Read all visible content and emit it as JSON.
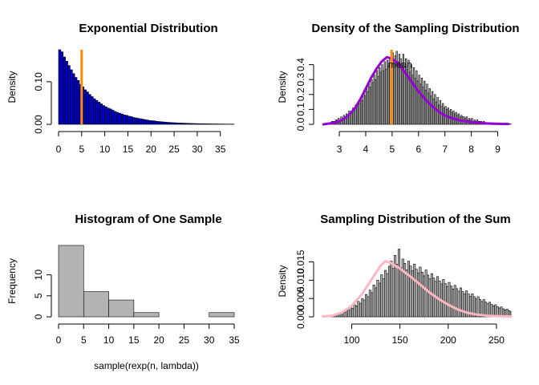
{
  "chart_data": [
    {
      "type": "bar",
      "panel": "top-left",
      "title": "Exponential Distribution",
      "xlabel": "",
      "ylabel": "Density",
      "xlim": [
        0,
        38
      ],
      "ylim": [
        0,
        0.175
      ],
      "xticks": [
        "0",
        "5",
        "10",
        "15",
        "20",
        "25",
        "30",
        "35"
      ],
      "yticks": [
        "0.00",
        "0.10"
      ],
      "bin_width": 0.5,
      "bar_color": "#0000cd",
      "values": [
        0.178,
        0.17,
        0.158,
        0.148,
        0.138,
        0.128,
        0.119,
        0.11,
        0.103,
        0.094,
        0.088,
        0.081,
        0.076,
        0.07,
        0.065,
        0.06,
        0.056,
        0.052,
        0.048,
        0.044,
        0.041,
        0.038,
        0.036,
        0.033,
        0.03,
        0.028,
        0.026,
        0.024,
        0.022,
        0.021,
        0.019,
        0.018,
        0.016,
        0.015,
        0.014,
        0.013,
        0.012,
        0.011,
        0.01,
        0.009,
        0.0085,
        0.008,
        0.007,
        0.0065,
        0.006,
        0.0055,
        0.005,
        0.0046,
        0.0042,
        0.0039,
        0.0036,
        0.0033,
        0.003,
        0.0028,
        0.0026,
        0.0024,
        0.0022,
        0.002,
        0.0019,
        0.0017,
        0.0016,
        0.0015,
        0.0014,
        0.0013,
        0.0012,
        0.0011,
        0.001,
        0.0009,
        0.0009,
        0.0008,
        0.0007,
        0.0007,
        0.0006,
        0.0006,
        0.0005,
        0.0005
      ],
      "vline": {
        "x": 5,
        "color": "#ff8c00"
      }
    },
    {
      "type": "bar",
      "panel": "top-right",
      "title": "Density of the Sampling Distribution",
      "xlabel": "",
      "ylabel": "Density",
      "xlim": [
        2.3,
        9.5
      ],
      "ylim": [
        0,
        0.5
      ],
      "xticks": [
        "3",
        "4",
        "5",
        "6",
        "7",
        "8",
        "9"
      ],
      "yticks": [
        "0.0",
        "0.1",
        "0.2",
        "0.3",
        "0.4"
      ],
      "bin_width": 0.05,
      "bin_start": 2.6,
      "values": [
        0.01,
        0.01,
        0.02,
        0.02,
        0.02,
        0.03,
        0.03,
        0.04,
        0.02,
        0.05,
        0.04,
        0.06,
        0.05,
        0.07,
        0.06,
        0.09,
        0.08,
        0.09,
        0.11,
        0.1,
        0.13,
        0.12,
        0.15,
        0.14,
        0.18,
        0.16,
        0.21,
        0.19,
        0.24,
        0.22,
        0.27,
        0.25,
        0.3,
        0.28,
        0.33,
        0.3,
        0.36,
        0.32,
        0.38,
        0.35,
        0.4,
        0.36,
        0.42,
        0.37,
        0.43,
        0.39,
        0.45,
        0.4,
        0.48,
        0.41,
        0.46,
        0.49,
        0.42,
        0.47,
        0.44,
        0.41,
        0.47,
        0.39,
        0.44,
        0.37,
        0.43,
        0.35,
        0.4,
        0.33,
        0.38,
        0.31,
        0.36,
        0.29,
        0.33,
        0.27,
        0.31,
        0.25,
        0.29,
        0.23,
        0.27,
        0.21,
        0.24,
        0.19,
        0.22,
        0.17,
        0.2,
        0.15,
        0.18,
        0.13,
        0.16,
        0.12,
        0.14,
        0.11,
        0.12,
        0.1,
        0.11,
        0.09,
        0.1,
        0.08,
        0.09,
        0.07,
        0.08,
        0.06,
        0.07,
        0.05,
        0.06,
        0.05,
        0.05,
        0.04,
        0.05,
        0.03,
        0.04,
        0.03,
        0.04,
        0.02,
        0.03,
        0.02,
        0.03,
        0.02,
        0.02,
        0.02,
        0.01,
        0.02,
        0.01,
        0.01,
        0.01,
        0.01,
        0.01,
        0.01,
        0.01,
        0.01,
        0.005,
        0.01,
        0.005,
        0.005,
        0.005,
        0.005,
        0.005,
        0.005,
        0.005,
        0.003,
        0.003,
        0.003,
        0.003,
        0.003,
        0.003,
        0.003,
        0.002,
        0.002,
        0.002,
        0.002,
        0.002,
        0.002,
        0.002,
        0.002
      ],
      "curve": {
        "color": "#9400d3",
        "x": [
          2.4,
          2.8,
          3.0,
          3.2,
          3.4,
          3.6,
          3.8,
          4.0,
          4.2,
          4.4,
          4.6,
          4.8,
          5.0,
          5.2,
          5.4,
          5.6,
          5.8,
          6.0,
          6.2,
          6.4,
          6.6,
          6.8,
          7.0,
          7.2,
          7.4,
          7.6,
          8.0,
          8.4,
          8.8,
          9.4
        ],
        "y": [
          0.0,
          0.01,
          0.02,
          0.04,
          0.07,
          0.11,
          0.17,
          0.24,
          0.31,
          0.37,
          0.42,
          0.45,
          0.44,
          0.41,
          0.37,
          0.32,
          0.27,
          0.22,
          0.18,
          0.14,
          0.11,
          0.08,
          0.06,
          0.045,
          0.035,
          0.025,
          0.015,
          0.008,
          0.004,
          0.002
        ]
      },
      "vline": {
        "x": 4.98,
        "color": "#ff8c00"
      },
      "annotations": [
        {
          "text": "mean",
          "x": 5.3,
          "y": 0.4
        }
      ]
    },
    {
      "type": "bar",
      "panel": "bottom-left",
      "title": "Histogram of One Sample",
      "xlabel": "sample(rexp(n, lambda))",
      "ylabel": "Frequency",
      "xlim": [
        0,
        35
      ],
      "ylim": [
        0,
        17
      ],
      "xticks": [
        "0",
        "5",
        "10",
        "15",
        "20",
        "25",
        "30",
        "35"
      ],
      "yticks": [
        "0",
        "5",
        "10"
      ],
      "bin_width": 5,
      "categories": [
        "0-5",
        "5-10",
        "10-15",
        "15-20",
        "20-25",
        "25-30",
        "30-35"
      ],
      "values": [
        17,
        6,
        4,
        1,
        0,
        0,
        1
      ],
      "bar_color": "#b3b3b3"
    },
    {
      "type": "bar",
      "panel": "bottom-right",
      "title": "Sampling Distribution of the Sum",
      "xlabel": "",
      "ylabel": "Density",
      "xlim": [
        68,
        265
      ],
      "ylim": [
        0,
        0.0195
      ],
      "xticks": [
        "100",
        "150",
        "200",
        "250"
      ],
      "yticks": [
        "0.000",
        "0.005",
        "0.010",
        "0.015"
      ],
      "bin_width": 2,
      "bin_start": 78,
      "values": [
        0.0003,
        0.0004,
        0.0006,
        0.0007,
        0.001,
        0.0009,
        0.0014,
        0.0012,
        0.002,
        0.0018,
        0.0026,
        0.0023,
        0.0033,
        0.003,
        0.0042,
        0.0037,
        0.005,
        0.0046,
        0.0061,
        0.0055,
        0.0073,
        0.0066,
        0.0087,
        0.0079,
        0.01,
        0.0092,
        0.0115,
        0.0104,
        0.0127,
        0.0118,
        0.0138,
        0.0152,
        0.0132,
        0.0168,
        0.0144,
        0.0185,
        0.0134,
        0.0158,
        0.0146,
        0.0128,
        0.0152,
        0.0139,
        0.0126,
        0.0144,
        0.013,
        0.012,
        0.0136,
        0.0122,
        0.0112,
        0.0128,
        0.0114,
        0.0104,
        0.0118,
        0.0106,
        0.0097,
        0.011,
        0.0098,
        0.009,
        0.0102,
        0.0091,
        0.0083,
        0.0094,
        0.0084,
        0.0076,
        0.0086,
        0.0077,
        0.007,
        0.0079,
        0.0069,
        0.0063,
        0.0071,
        0.0062,
        0.0056,
        0.0063,
        0.0055,
        0.0049,
        0.0055,
        0.0047,
        0.0042,
        0.0047,
        0.004,
        0.0036,
        0.004,
        0.0034,
        0.003,
        0.0033,
        0.0028,
        0.0024,
        0.0027,
        0.0022,
        0.0019,
        0.0021,
        0.0017,
        0.0015,
        0.0016,
        0.0013,
        0.0011,
        0.0012,
        0.001,
        0.0008,
        0.0009,
        0.0007,
        0.0006,
        0.0006,
        0.0005,
        0.0004,
        0.0004,
        0.0003,
        0.0003,
        0.0002,
        0.0002,
        0.0002,
        0.0001,
        0.0001,
        0.0001,
        0.0001
      ],
      "curve": {
        "color": "#ffb6c1",
        "x": [
          70,
          80,
          90,
          100,
          110,
          120,
          130,
          135,
          140,
          150,
          160,
          170,
          180,
          190,
          200,
          210,
          220,
          230,
          240,
          250,
          265
        ],
        "y": [
          0.0001,
          0.0003,
          0.0012,
          0.003,
          0.006,
          0.01,
          0.014,
          0.0152,
          0.0148,
          0.0132,
          0.0112,
          0.009,
          0.0068,
          0.0049,
          0.0033,
          0.002,
          0.0011,
          0.0006,
          0.0003,
          0.0002,
          0.0001
        ]
      }
    }
  ]
}
